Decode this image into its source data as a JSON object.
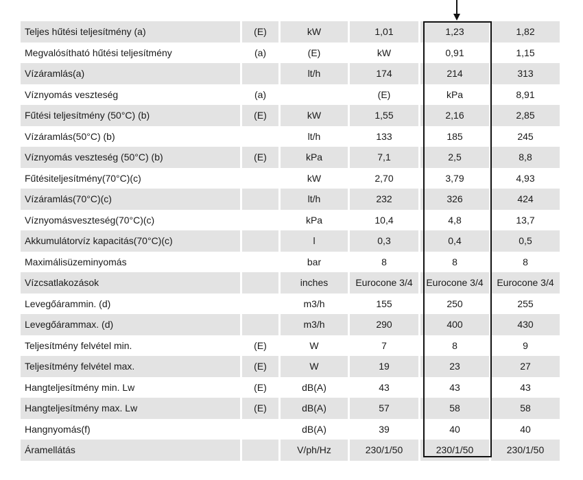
{
  "table": {
    "rows": [
      {
        "name": "Teljes hűtési teljesítmény (a)",
        "ref": "(E)",
        "unit": "kW",
        "v1": "1,01",
        "v2": "1,23",
        "v3": "1,82"
      },
      {
        "name": "Megvalósítható hűtési teljesítmény",
        "ref": "(a)",
        "unit": "(E)",
        "v1": "kW",
        "v2": "0,91",
        "v3": "1,15"
      },
      {
        "name": "Vízáramlás(a)",
        "ref": "",
        "unit": "lt/h",
        "v1": "174",
        "v2": "214",
        "v3": "313"
      },
      {
        "name": "Víznyomás veszteség",
        "ref": "(a)",
        "unit": "",
        "v1": "(E)",
        "v2": "kPa",
        "v3": "8,91"
      },
      {
        "name": "Fűtési teljesítmény (50°C) (b)",
        "ref": "(E)",
        "unit": "kW",
        "v1": "1,55",
        "v2": "2,16",
        "v3": "2,85"
      },
      {
        "name": "Vízáramlás(50°C) (b)",
        "ref": "",
        "unit": "lt/h",
        "v1": "133",
        "v2": "185",
        "v3": "245"
      },
      {
        "name": "Víznyomás veszteség (50°C) (b)",
        "ref": "(E)",
        "unit": "kPa",
        "v1": "7,1",
        "v2": "2,5",
        "v3": "8,8"
      },
      {
        "name": "Fűtésiteljesítmény(70°C)(c)",
        "ref": "",
        "unit": "kW",
        "v1": "2,70",
        "v2": "3,79",
        "v3": "4,93"
      },
      {
        "name": "Vízáramlás(70°C)(c)",
        "ref": "",
        "unit": "lt/h",
        "v1": "232",
        "v2": "326",
        "v3": "424"
      },
      {
        "name": "Víznyomásveszteség(70°C)(c)",
        "ref": "",
        "unit": "kPa",
        "v1": "10,4",
        "v2": "4,8",
        "v3": "13,7"
      },
      {
        "name": "Akkumulátorvíz kapacitás(70°C)(c)",
        "ref": "",
        "unit": "l",
        "v1": "0,3",
        "v2": "0,4",
        "v3": "0,5"
      },
      {
        "name": "Maximálisüzeminyomás",
        "ref": "",
        "unit": "bar",
        "v1": "8",
        "v2": "8",
        "v3": "8"
      },
      {
        "name": "Vízcsatlakozások",
        "ref": "",
        "unit": "inches",
        "v1": "Eurocone 3/4",
        "v2": "Eurocone 3/4",
        "v3": "Eurocone 3/4"
      },
      {
        "name": "Levegőárammin. (d)",
        "ref": "",
        "unit": "m3/h",
        "v1": "155",
        "v2": "250",
        "v3": "255"
      },
      {
        "name": "Levegőárammax. (d)",
        "ref": "",
        "unit": "m3/h",
        "v1": "290",
        "v2": "400",
        "v3": "430"
      },
      {
        "name": "Teljesítmény felvétel min.",
        "ref": "(E)",
        "unit": "W",
        "v1": "7",
        "v2": "8",
        "v3": "9"
      },
      {
        "name": "Teljesítmény felvétel max.",
        "ref": "(E)",
        "unit": "W",
        "v1": "19",
        "v2": "23",
        "v3": "27"
      },
      {
        "name": "Hangteljesítmény min. Lw",
        "ref": "(E)",
        "unit": "dB(A)",
        "v1": "43",
        "v2": "43",
        "v3": "43"
      },
      {
        "name": "Hangteljesítmény max. Lw",
        "ref": "(E)",
        "unit": "dB(A)",
        "v1": "57",
        "v2": "58",
        "v3": "58"
      },
      {
        "name": "Hangnyomás(f)",
        "ref": "",
        "unit": "dB(A)",
        "v1": "39",
        "v2": "40",
        "v3": "40"
      },
      {
        "name": "Áramellátás",
        "ref": "",
        "unit": "V/ph/Hz",
        "v1": "230/1/50",
        "v2": "230/1/50",
        "v3": "230/1/50"
      }
    ]
  },
  "highlighted_column": "v2",
  "colors": {
    "shade": "#e3e3e3",
    "frame": "#111111"
  }
}
